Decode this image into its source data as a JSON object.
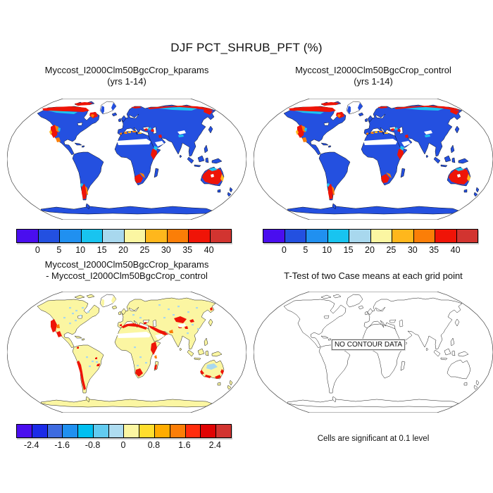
{
  "title": "DJF PCT_SHRUB_PFT (%)",
  "panels": {
    "top_left": {
      "title_line1": "Myccost_I2000Clm50BgcCrop_kparams",
      "title_line2": "(yrs 1-14)"
    },
    "top_right": {
      "title_line1": "Myccost_I2000Clm50BgcCrop_control",
      "title_line2": "(yrs 1-14)"
    },
    "bottom_left": {
      "title_line1": "Myccost_I2000Clm50BgcCrop_kparams",
      "title_line2": "- Myccost_I2000Clm50BgcCrop_control"
    },
    "bottom_right": {
      "title": "T-Test of two Case means at each grid point",
      "no_data_label": "NO CONTOUR DATA",
      "caption": "Cells are significant at 0.1 level"
    }
  },
  "colorbars": {
    "pct": {
      "colors": [
        "#4a0eef",
        "#2350e0",
        "#2090f0",
        "#18c4f0",
        "#a8d8ee",
        "#fbf6a2",
        "#ffb71c",
        "#fb7e07",
        "#f01407",
        "#d23430"
      ],
      "ticks": [
        "0",
        "5",
        "10",
        "15",
        "20",
        "25",
        "30",
        "35",
        "40"
      ],
      "tick_start": 1,
      "tick_step": 1
    },
    "diff": {
      "colors": [
        "#4a0eef",
        "#1b2be8",
        "#3e6be0",
        "#2090f0",
        "#00bff0",
        "#62cbf0",
        "#aedcf0",
        "#fbf6a2",
        "#ffde2e",
        "#ffac00",
        "#fb7e07",
        "#ff2d0d",
        "#e00404",
        "#d23430"
      ],
      "ticks": [
        "-2.4",
        "-1.6",
        "-0.8",
        "0",
        "0.8",
        "1.6",
        "2.4"
      ],
      "tick_start": 1,
      "tick_step": 2
    }
  },
  "map_colors": {
    "land_fill_top": "#2450e0",
    "land_fill_diff": "#fbf6a2",
    "land_fill_ttest": "#ffffff",
    "patch_red": "#ee1407",
    "patch_orange": "#fb7e07",
    "patch_amber": "#ffb71c",
    "patch_cyan": "#1cc4f0",
    "patch_lightblue": "#a8d8ee",
    "outline": "#000000"
  },
  "chart_data": {
    "type": "heatmap",
    "title": "DJF PCT_SHRUB_PFT (%)",
    "projection": "Robinson global maps",
    "panels": [
      {
        "name": "Myccost_I2000Clm50BgcCrop_kparams (yrs 1-14)",
        "units": "%",
        "colorbar_levels": [
          0,
          5,
          10,
          15,
          20,
          25,
          30,
          35,
          40
        ],
        "n_bins": 10,
        "description": "Shrub fraction: mostly 0-5% (blue); high values (red, >35%) along Arctic coasts of Alaska/Canada/Siberia, western US, Patagonia, southern and eastern Africa, and Australia; Greenland ice masked white; Sahara/Arabia band masked white"
      },
      {
        "name": "Myccost_I2000Clm50BgcCrop_control (yrs 1-14)",
        "units": "%",
        "colorbar_levels": [
          0,
          5,
          10,
          15,
          20,
          25,
          30,
          35,
          40
        ],
        "n_bins": 10,
        "description": "Visually identical pattern to kparams case"
      },
      {
        "name": "Myccost_I2000Clm50BgcCrop_kparams - Myccost_I2000Clm50BgcCrop_control",
        "units": "%",
        "colorbar_tick_labels": [
          -2.4,
          -1.6,
          -0.8,
          0,
          0.8,
          1.6,
          2.4
        ],
        "n_bins": 14,
        "bin_width": 0.4,
        "description": "Differences near zero (pale yellow) with positive patches (red) in California/Mexico, Mediterranean N Africa, Middle East, Central Asia, East Africa, Madagascar, Andes/Patagonia and southern Australia; scattered small negative (light blue) speckles"
      },
      {
        "name": "T-Test of two Case means at each grid point",
        "note": "NO CONTOUR DATA",
        "caption": "Cells are significant at 0.1 level",
        "description": "Outline-only map, no significant cells contoured"
      }
    ]
  }
}
